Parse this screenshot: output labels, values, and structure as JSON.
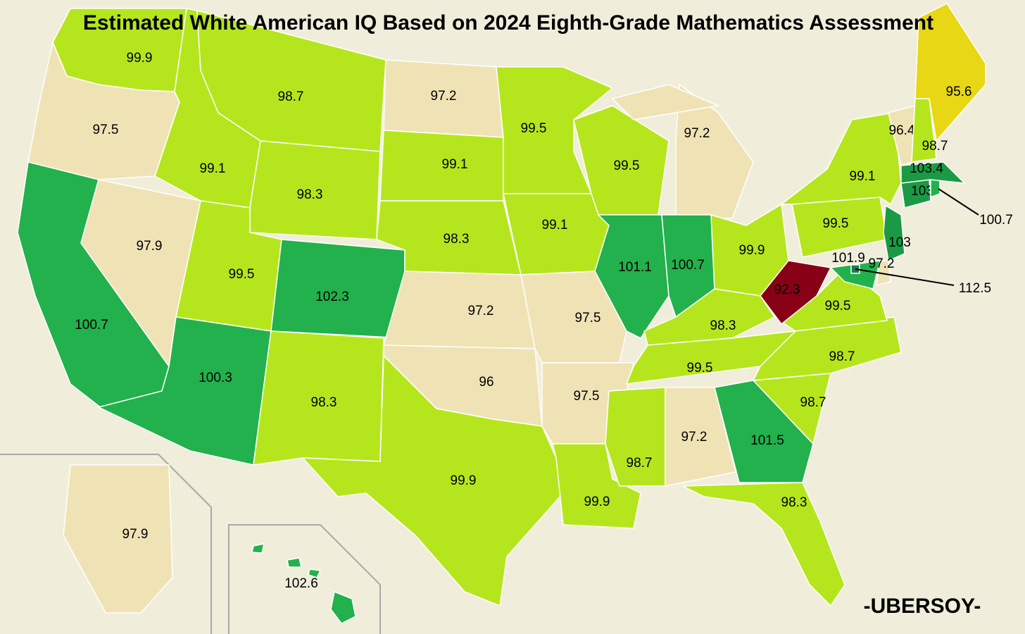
{
  "title": "Estimated White American IQ Based on 2024 Eighth-Grade Mathematics Assessment",
  "credit": "-UBERSOY-",
  "regions": [
    {
      "value": 99.9,
      "color": "#b5e61d"
    },
    {
      "value": 97.5,
      "color": "#efe3b5"
    },
    {
      "value": 100.7,
      "color": "#22b14c"
    },
    {
      "value": 97.9,
      "color": "#efe3b5"
    },
    {
      "value": 99.1,
      "color": "#b5e61d"
    },
    {
      "value": 98.7,
      "color": "#b5e61d"
    },
    {
      "value": 98.3,
      "color": "#b5e61d"
    },
    {
      "value": 99.5,
      "color": "#b5e61d"
    },
    {
      "value": 102.3,
      "color": "#22b14c"
    },
    {
      "value": 100.3,
      "color": "#22b14c"
    },
    {
      "value": 98.3,
      "color": "#b5e61d"
    },
    {
      "value": 97.2,
      "color": "#efe3b5"
    },
    {
      "value": 99.1,
      "color": "#b5e61d"
    },
    {
      "value": 98.3,
      "color": "#b5e61d"
    },
    {
      "value": 97.2,
      "color": "#efe3b5"
    },
    {
      "value": 96,
      "color": "#efe3b5"
    },
    {
      "value": 99.9,
      "color": "#b5e61d"
    },
    {
      "value": 99.5,
      "color": "#b5e61d"
    },
    {
      "value": 99.1,
      "color": "#b5e61d"
    },
    {
      "value": 97.5,
      "color": "#efe3b5"
    },
    {
      "value": 97.5,
      "color": "#efe3b5"
    },
    {
      "value": 99.9,
      "color": "#b5e61d"
    },
    {
      "value": 99.5,
      "color": "#b5e61d"
    },
    {
      "value": 101.1,
      "color": "#22b14c"
    },
    {
      "value": 97.2,
      "color": "#efe3b5"
    },
    {
      "value": 100.7,
      "color": "#22b14c"
    },
    {
      "value": 99.9,
      "color": "#b5e61d"
    },
    {
      "value": 98.3,
      "color": "#b5e61d"
    },
    {
      "value": 99.5,
      "color": "#b5e61d"
    },
    {
      "value": 98.7,
      "color": "#b5e61d"
    },
    {
      "value": 97.2,
      "color": "#efe3b5"
    },
    {
      "value": 101.5,
      "color": "#22b14c"
    },
    {
      "value": 98.3,
      "color": "#b5e61d"
    },
    {
      "value": 98.7,
      "color": "#b5e61d"
    },
    {
      "value": 98.7,
      "color": "#b5e61d"
    },
    {
      "value": 99.5,
      "color": "#b5e61d"
    },
    {
      "value": 92.3,
      "color": "#880015"
    },
    {
      "value": 99.5,
      "color": "#b5e61d"
    },
    {
      "value": 99.1,
      "color": "#b5e61d"
    },
    {
      "value": 103,
      "color": "#1a9a45"
    },
    {
      "value": 101.9,
      "color": "#22b14c"
    },
    {
      "value": 97.2,
      "color": "#efe3b5"
    },
    {
      "value": 103,
      "color": "#1a9a45"
    },
    {
      "value": 100.7,
      "color": "#22b14c"
    },
    {
      "value": 103.4,
      "color": "#1a9a45"
    },
    {
      "value": 96.4,
      "color": "#efe3b5"
    },
    {
      "value": 98.7,
      "color": "#b5e61d"
    },
    {
      "value": 95.6,
      "color": "#e8d714"
    },
    {
      "value": 97.9,
      "color": "#efe3b5"
    },
    {
      "value": 102.6,
      "color": "#22b14c"
    },
    {
      "value": 112.5,
      "color": "#1f7a55"
    }
  ]
}
